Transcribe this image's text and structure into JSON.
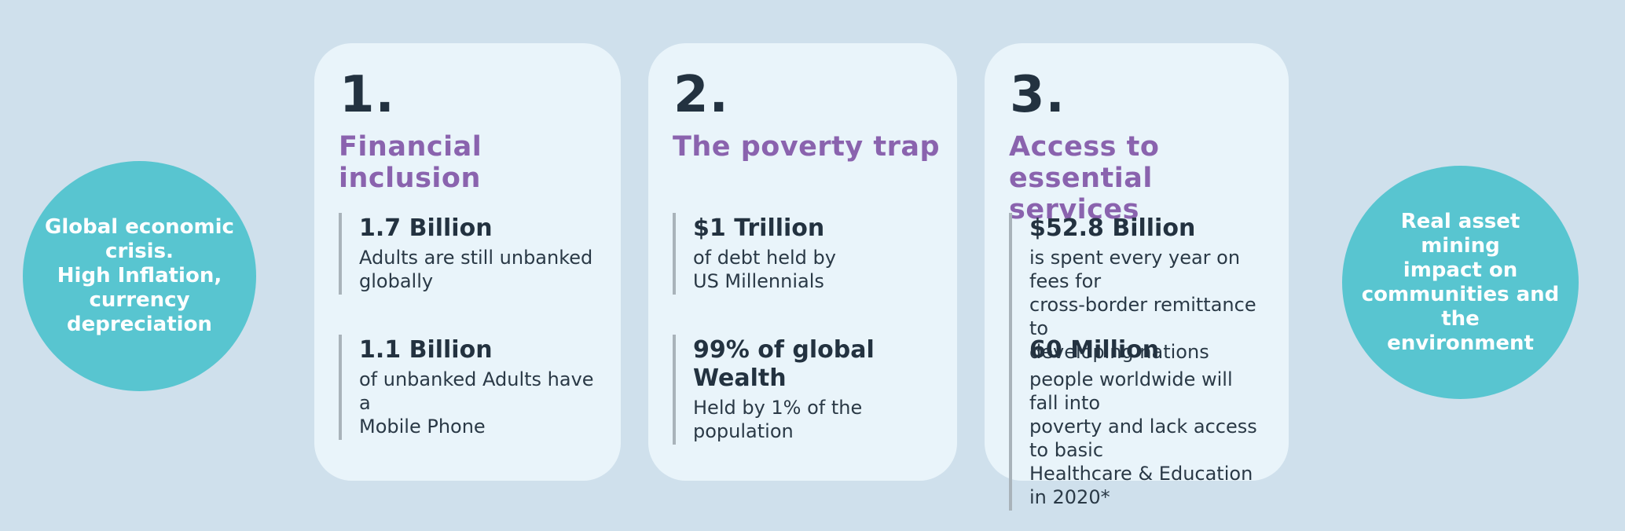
{
  "palette": {
    "background": "#cfe0ec",
    "card_background": "#e9f4fa",
    "circle_teal": "#58c5d0",
    "heading_purple": "#8a63ae",
    "text_dark": "#233240",
    "stat_bar_gray": "#a9b3ba",
    "circle_text_white": "#ffffff"
  },
  "left_circle": {
    "text": "Global economic\ncrisis.\nHigh Inflation,\ncurrency\ndepreciation"
  },
  "right_circle": {
    "text": "Real asset  mining\nimpact on\ncommunities and the\nenvironment"
  },
  "cards": [
    {
      "number": "1.",
      "title": "Financial inclusion",
      "stats": [
        {
          "value": "1.7 Billion",
          "description": "Adults are still unbanked\nglobally"
        },
        {
          "value": "1.1 Billion",
          "description": "of unbanked Adults have a\nMobile Phone"
        }
      ]
    },
    {
      "number": "2.",
      "title": "The poverty trap",
      "stats": [
        {
          "value": "$1 Trillion",
          "description": "of debt held by\nUS Millennials"
        },
        {
          "value": "99% of global Wealth",
          "description": "Held by 1% of the\npopulation"
        }
      ]
    },
    {
      "number": "3.",
      "title": "Access to essential\nservices",
      "stats": [
        {
          "value": "$52.8 Billion",
          "description": "is spent every year on fees for\ncross-border remittance to\ndeveloping nations"
        },
        {
          "value": "60 Million",
          "description": "people worldwide will fall into\npoverty and lack access to basic\nHealthcare & Education in 2020*"
        }
      ]
    }
  ]
}
